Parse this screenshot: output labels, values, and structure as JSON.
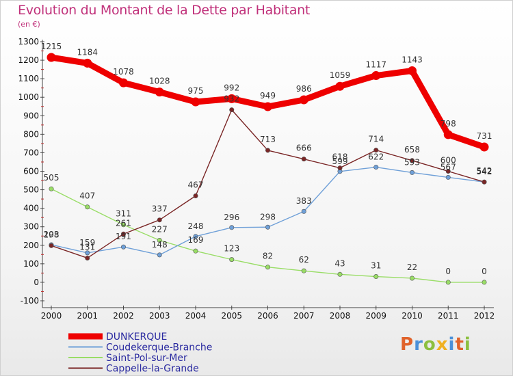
{
  "title": "Evolution du Montant de la Dette par Habitant",
  "subtitle": "(en €)",
  "logo": {
    "letters": [
      "P",
      "r",
      "o",
      "x",
      "i",
      "t",
      "i"
    ],
    "colors": [
      "#e0622a",
      "#4a90d9",
      "#8cbf3f",
      "#f0b020",
      "#4a90d9",
      "#e0622a",
      "#8cbf3f"
    ]
  },
  "chart_data": {
    "type": "line",
    "title": "Evolution du Montant de la Dette par Habitant",
    "subtitle": "(en €)",
    "x": [
      "2000",
      "2001",
      "2002",
      "2003",
      "2004",
      "2005",
      "2006",
      "2007",
      "2008",
      "2009",
      "2010",
      "2011",
      "2012"
    ],
    "yticks": [
      "-100",
      "0",
      "100",
      "200",
      "300",
      "400",
      "500",
      "600",
      "700",
      "800",
      "900",
      "1000",
      "1100",
      "1200",
      "1300"
    ],
    "ylim": [
      -100,
      1300
    ],
    "legend_position": "bottom-left",
    "grid": false,
    "series": [
      {
        "name": "DUNKERQUE",
        "color": "#ee0000",
        "values": [
          1215,
          1184,
          1078,
          1028,
          975,
          992,
          949,
          986,
          1059,
          1117,
          1143,
          798,
          731
        ]
      },
      {
        "name": "Coudekerque-Branche",
        "color": "#6fa0d8",
        "values": [
          203,
          159,
          191,
          148,
          248,
          296,
          298,
          383,
          599,
          622,
          593,
          567,
          542
        ]
      },
      {
        "name": "Saint-Pol-sur-Mer",
        "color": "#99dd66",
        "values": [
          505,
          407,
          311,
          227,
          169,
          123,
          82,
          62,
          43,
          31,
          22,
          0,
          0
        ]
      },
      {
        "name": "Cappelle-la-Grande",
        "color": "#7a2626",
        "values": [
          198,
          131,
          261,
          337,
          467,
          932,
          713,
          666,
          618,
          714,
          658,
          600,
          542
        ]
      }
    ]
  }
}
